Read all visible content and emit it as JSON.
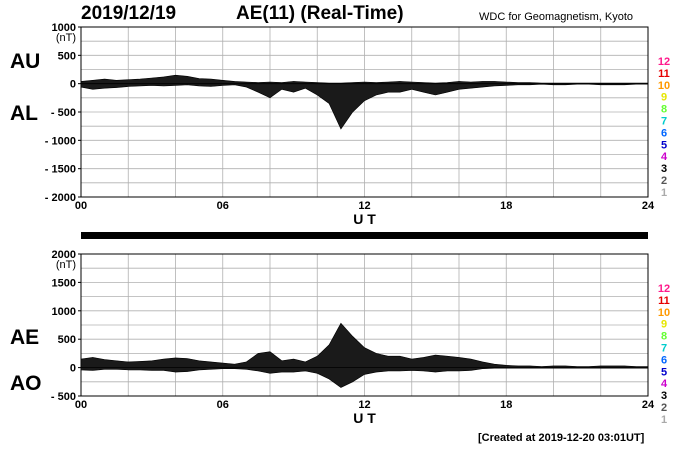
{
  "header": {
    "date": "2019/12/19",
    "title": "AE(11) (Real-Time)",
    "source": "WDC for Geomagnetism, Kyoto"
  },
  "footer": {
    "created": "[Created at 2019-12-20 03:01UT]"
  },
  "hour_legend": {
    "labels": [
      "12",
      "11",
      "10",
      "9",
      "8",
      "7",
      "6",
      "5",
      "4",
      "3",
      "2",
      "1"
    ],
    "colors": [
      "#ff1a8c",
      "#e60000",
      "#ff9900",
      "#e6e600",
      "#66ff33",
      "#00cccc",
      "#0066ff",
      "#0000cc",
      "#cc00cc",
      "#000000",
      "#555555",
      "#aaaaaa"
    ]
  },
  "chart_data": [
    {
      "type": "area",
      "panel": "AU/AL",
      "series_labels": [
        "AU",
        "AL"
      ],
      "unit_label": "(nT)",
      "xlabel": "U T",
      "xlim": [
        0,
        24
      ],
      "xticks": [
        "00",
        "06",
        "12",
        "18",
        "24"
      ],
      "ylim": [
        -2000,
        1000
      ],
      "yticks": [
        "1000",
        "500",
        "0",
        "- 500",
        "- 1000",
        "- 1500",
        "- 2000"
      ],
      "grid": true,
      "hours": [
        0,
        0.5,
        1,
        1.5,
        2,
        2.5,
        3,
        3.5,
        4,
        4.5,
        5,
        5.5,
        6,
        6.5,
        7,
        7.5,
        8,
        8.5,
        9,
        9.5,
        10,
        10.5,
        11,
        11.5,
        12,
        12.5,
        13,
        13.5,
        14,
        14.5,
        15,
        15.5,
        16,
        16.5,
        17,
        17.5,
        18,
        18.5,
        19,
        19.5,
        20,
        20.5,
        21,
        21.5,
        22,
        22.5,
        23,
        23.5,
        24
      ],
      "upper_nT": [
        40,
        60,
        80,
        60,
        70,
        80,
        100,
        120,
        150,
        130,
        90,
        80,
        60,
        40,
        30,
        20,
        30,
        20,
        40,
        30,
        20,
        10,
        10,
        20,
        30,
        20,
        30,
        40,
        30,
        20,
        10,
        20,
        40,
        30,
        40,
        40,
        30,
        20,
        20,
        10,
        10,
        10,
        10,
        10,
        10,
        10,
        10,
        10,
        10
      ],
      "lower_nT": [
        -60,
        -100,
        -80,
        -70,
        -50,
        -40,
        -30,
        -40,
        -30,
        -20,
        -40,
        -50,
        -30,
        -20,
        -60,
        -150,
        -250,
        -100,
        -150,
        -80,
        -200,
        -350,
        -800,
        -500,
        -300,
        -200,
        -150,
        -150,
        -100,
        -150,
        -200,
        -150,
        -100,
        -80,
        -60,
        -40,
        -30,
        -20,
        -20,
        -10,
        -20,
        -20,
        -10,
        -10,
        -20,
        -20,
        -20,
        -10,
        -10
      ]
    },
    {
      "type": "area",
      "panel": "AE/AO",
      "series_labels": [
        "AE",
        "AO"
      ],
      "unit_label": "(nT)",
      "xlabel": "U T",
      "xlim": [
        0,
        24
      ],
      "xticks": [
        "00",
        "06",
        "12",
        "18",
        "24"
      ],
      "ylim": [
        -500,
        2000
      ],
      "yticks": [
        "2000",
        "1500",
        "1000",
        "500",
        "0",
        "- 500"
      ],
      "grid": true,
      "hours": [
        0,
        0.5,
        1,
        1.5,
        2,
        2.5,
        3,
        3.5,
        4,
        4.5,
        5,
        5.5,
        6,
        6.5,
        7,
        7.5,
        8,
        8.5,
        9,
        9.5,
        10,
        10.5,
        11,
        11.5,
        12,
        12.5,
        13,
        13.5,
        14,
        14.5,
        15,
        15.5,
        16,
        16.5,
        17,
        17.5,
        18,
        18.5,
        19,
        19.5,
        20,
        20.5,
        21,
        21.5,
        22,
        22.5,
        23,
        23.5,
        24
      ],
      "upper_nT": [
        150,
        180,
        140,
        120,
        100,
        110,
        120,
        150,
        170,
        160,
        120,
        100,
        80,
        60,
        100,
        250,
        280,
        120,
        150,
        100,
        200,
        400,
        780,
        550,
        350,
        250,
        200,
        200,
        150,
        180,
        220,
        200,
        180,
        150,
        100,
        60,
        40,
        30,
        30,
        20,
        30,
        30,
        20,
        20,
        30,
        30,
        30,
        20,
        20
      ],
      "lower_nT": [
        -40,
        -50,
        -30,
        -30,
        -40,
        -40,
        -50,
        -50,
        -80,
        -70,
        -40,
        -30,
        -20,
        -20,
        -30,
        -60,
        -100,
        -80,
        -80,
        -60,
        -100,
        -200,
        -350,
        -250,
        -120,
        -80,
        -60,
        -60,
        -50,
        -60,
        -80,
        -60,
        -60,
        -50,
        -20,
        -10,
        -10,
        -10,
        -10,
        -10,
        -10,
        -10,
        -10,
        -10,
        -10,
        -10,
        -10,
        -10,
        -10
      ]
    }
  ]
}
